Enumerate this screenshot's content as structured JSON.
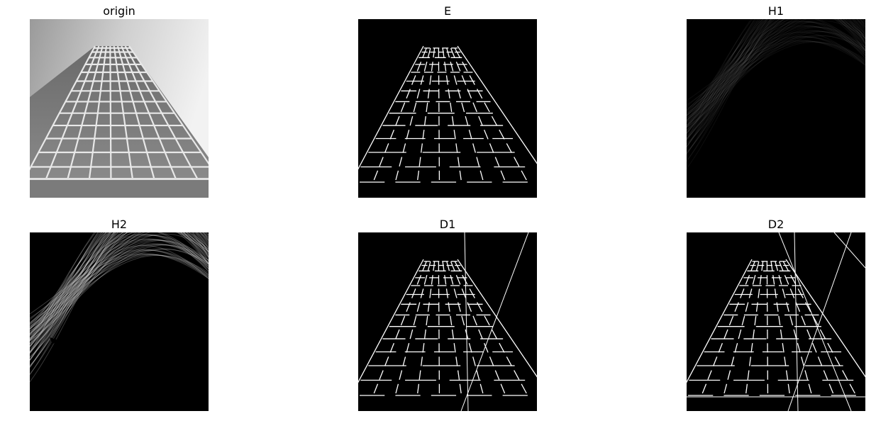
{
  "figure": {
    "panels": [
      {
        "id": "origin",
        "title": "origin"
      },
      {
        "id": "E",
        "title": "E"
      },
      {
        "id": "H1",
        "title": "H1"
      },
      {
        "id": "H2",
        "title": "H2"
      },
      {
        "id": "D1",
        "title": "D1"
      },
      {
        "id": "D2",
        "title": "D2"
      }
    ]
  }
}
